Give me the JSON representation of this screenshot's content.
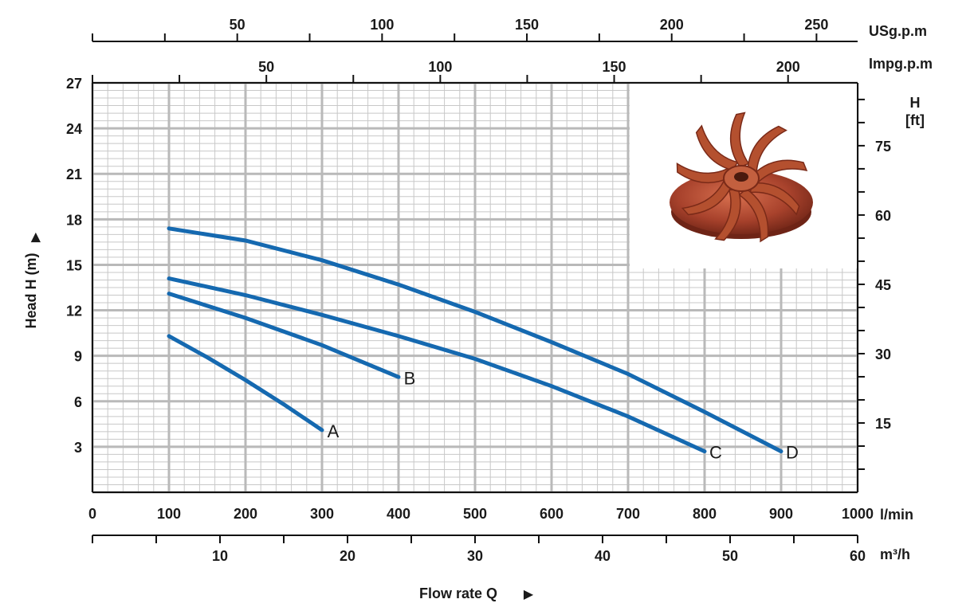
{
  "chart_data": {
    "type": "line",
    "title": "",
    "xlabel": "Flow rate Q",
    "ylabel": "Head H (m)",
    "x_unit": "l/min",
    "xlim": [
      0,
      1000
    ],
    "ylim": [
      0,
      27
    ],
    "x_ticks": [
      "0",
      "100",
      "200",
      "300",
      "400",
      "500",
      "600",
      "700",
      "800",
      "900",
      "1000"
    ],
    "y_ticks": [
      "3",
      "6",
      "9",
      "12",
      "15",
      "18",
      "21",
      "24",
      "27"
    ],
    "grid": true,
    "secondary_axes": {
      "top_usgpm": {
        "label": "USg.p.m",
        "ticks": [
          "50",
          "100",
          "150",
          "200",
          "250"
        ],
        "values": [
          50,
          100,
          150,
          200,
          250
        ],
        "minor_step": 25,
        "lim": [
          0,
          264.2
        ]
      },
      "top_impgpm": {
        "label": "Impg.p.m",
        "ticks": [
          "50",
          "100",
          "150",
          "200"
        ],
        "values": [
          50,
          100,
          150,
          200
        ],
        "minor_step": 25,
        "lim": [
          0,
          220
        ]
      },
      "right_ft": {
        "label": "H\n[ft]",
        "label_lines": [
          "H",
          "[ft]"
        ],
        "ticks": [
          "15",
          "30",
          "45",
          "60",
          "75"
        ],
        "values": [
          15,
          30,
          45,
          60,
          75
        ],
        "minor_step": 5,
        "lim": [
          0,
          88.6
        ]
      },
      "bottom_m3h": {
        "label": "m³/h",
        "ticks": [
          "10",
          "20",
          "30",
          "40",
          "50",
          "60"
        ],
        "values": [
          10,
          20,
          30,
          40,
          50,
          60
        ],
        "minor_step": 5,
        "lim": [
          0,
          60
        ]
      }
    },
    "series": [
      {
        "name": "A",
        "x": [
          100,
          150,
          200,
          250,
          300
        ],
        "y": [
          10.3,
          8.9,
          7.4,
          5.8,
          4.1
        ]
      },
      {
        "name": "B",
        "x": [
          100,
          200,
          300,
          400
        ],
        "y": [
          13.1,
          11.5,
          9.7,
          7.6
        ]
      },
      {
        "name": "C",
        "x": [
          100,
          200,
          300,
          400,
          500,
          600,
          700,
          800
        ],
        "y": [
          14.1,
          13.0,
          11.7,
          10.3,
          8.8,
          7.0,
          5.0,
          2.7
        ]
      },
      {
        "name": "D",
        "x": [
          100,
          200,
          300,
          400,
          500,
          600,
          700,
          800,
          900
        ],
        "y": [
          17.4,
          16.6,
          15.3,
          13.7,
          11.9,
          9.9,
          7.8,
          5.3,
          2.7
        ]
      }
    ]
  },
  "colors": {
    "curve": "#1569b0",
    "impeller": "#a8422c",
    "grid": "#c8c8c8",
    "text": "#1a1a1a"
  },
  "icons": {
    "impeller": "impeller-image"
  }
}
